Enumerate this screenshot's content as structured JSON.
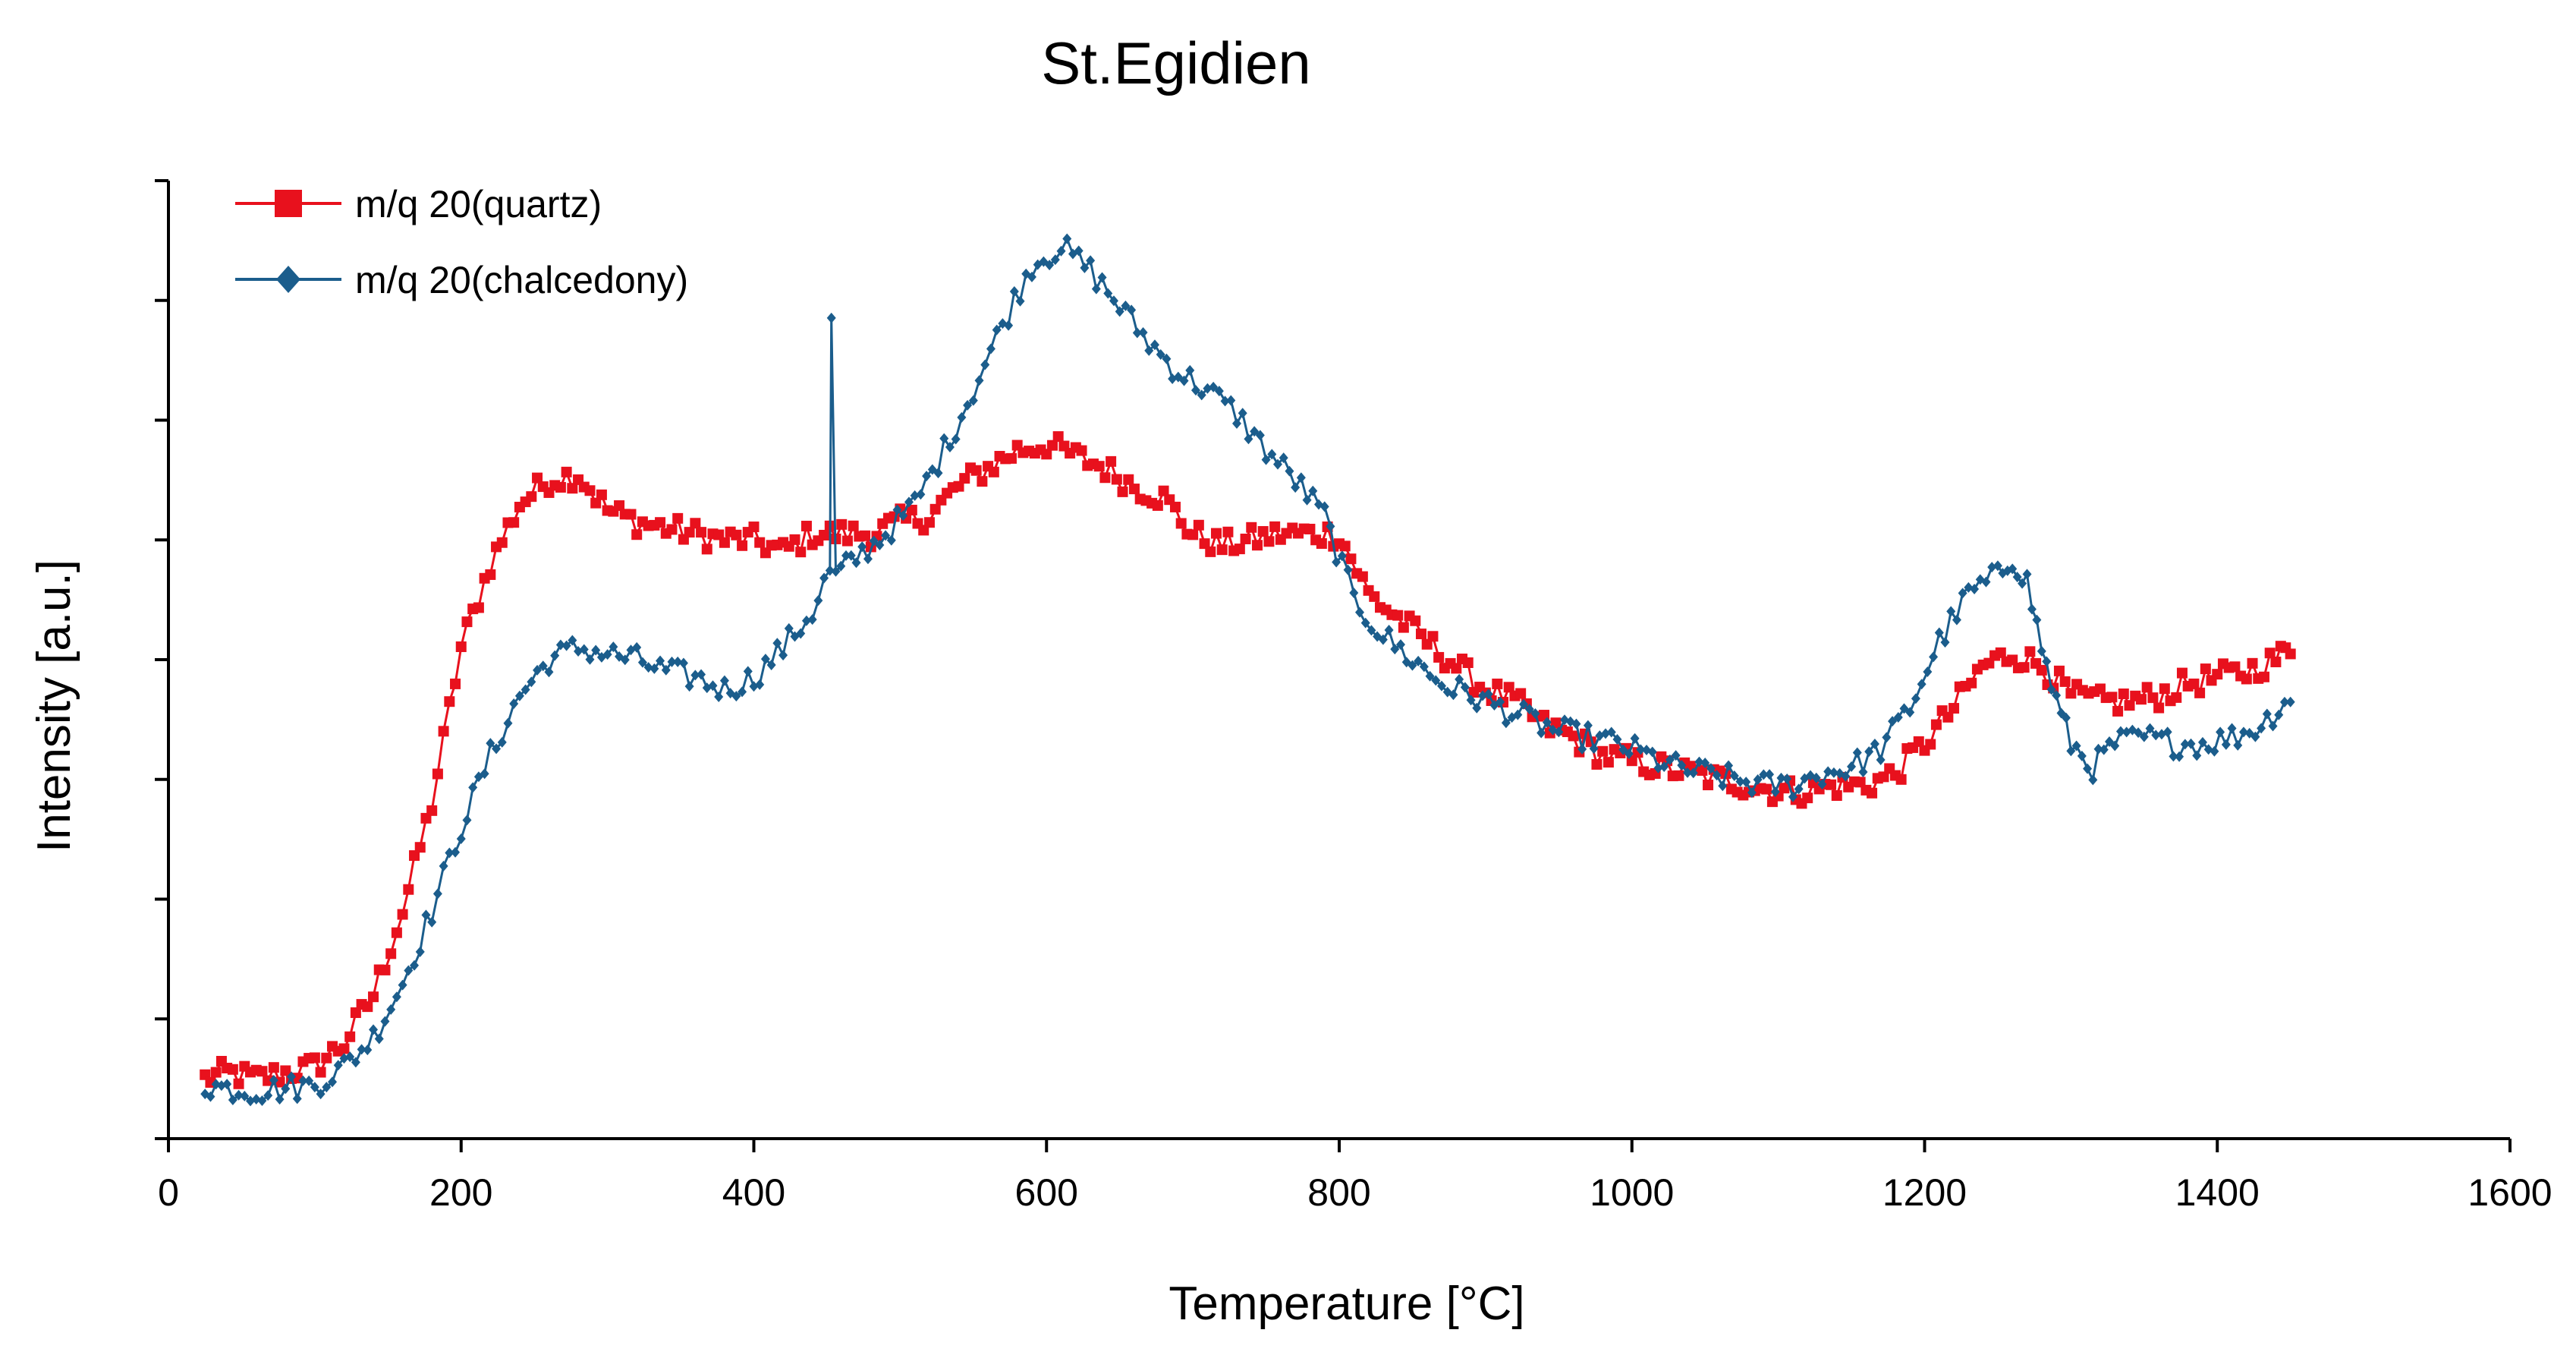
{
  "chart_data": {
    "type": "line",
    "title": "St.Egidien",
    "xlabel": "Temperature [°C]",
    "ylabel": "Intensity [a.u.]",
    "xlim": [
      0,
      1600
    ],
    "ylim": [
      0,
      8
    ],
    "x_ticks": [
      0,
      200,
      400,
      600,
      800,
      1000,
      1200,
      1400,
      1600
    ],
    "x_tick_labels": [
      "0",
      "200",
      "400",
      "600",
      "800",
      "1000",
      "1200",
      "1400",
      "1600"
    ],
    "y_ticks": [
      0,
      1,
      2,
      3,
      4,
      5,
      6,
      7,
      8
    ],
    "y_tick_labels_shown": false,
    "grid": false,
    "legend_position": "top-left",
    "series": [
      {
        "name": "m/q 20(quartz)",
        "color": "#e8111d",
        "marker": "square",
        "points": [
          [
            25,
            0.5
          ],
          [
            40,
            0.55
          ],
          [
            60,
            0.5
          ],
          [
            80,
            0.55
          ],
          [
            100,
            0.6
          ],
          [
            120,
            0.8
          ],
          [
            140,
            1.2
          ],
          [
            160,
            1.9
          ],
          [
            180,
            2.8
          ],
          [
            200,
            4.1
          ],
          [
            220,
            4.8
          ],
          [
            240,
            5.3
          ],
          [
            260,
            5.5
          ],
          [
            280,
            5.55
          ],
          [
            300,
            5.25
          ],
          [
            320,
            5.15
          ],
          [
            340,
            5.1
          ],
          [
            360,
            5.05
          ],
          [
            380,
            5.0
          ],
          [
            400,
            5.0
          ],
          [
            420,
            4.9
          ],
          [
            440,
            5.05
          ],
          [
            460,
            5.05
          ],
          [
            480,
            5.05
          ],
          [
            500,
            5.15
          ],
          [
            520,
            5.2
          ],
          [
            540,
            5.45
          ],
          [
            560,
            5.6
          ],
          [
            580,
            5.75
          ],
          [
            600,
            5.8
          ],
          [
            620,
            5.7
          ],
          [
            640,
            5.6
          ],
          [
            660,
            5.45
          ],
          [
            680,
            5.35
          ],
          [
            700,
            5.05
          ],
          [
            720,
            4.95
          ],
          [
            740,
            5.0
          ],
          [
            760,
            5.05
          ],
          [
            780,
            5.05
          ],
          [
            800,
            5.05
          ],
          [
            820,
            4.55
          ],
          [
            840,
            4.35
          ],
          [
            860,
            4.15
          ],
          [
            880,
            3.95
          ],
          [
            900,
            3.75
          ],
          [
            920,
            3.65
          ],
          [
            940,
            3.45
          ],
          [
            960,
            3.35
          ],
          [
            980,
            3.2
          ],
          [
            1000,
            3.15
          ],
          [
            1020,
            3.1
          ],
          [
            1040,
            3.05
          ],
          [
            1060,
            3.0
          ],
          [
            1080,
            2.95
          ],
          [
            1100,
            2.9
          ],
          [
            1120,
            2.9
          ],
          [
            1140,
            2.95
          ],
          [
            1160,
            2.95
          ],
          [
            1180,
            3.05
          ],
          [
            1200,
            3.3
          ],
          [
            1220,
            3.6
          ],
          [
            1240,
            3.95
          ],
          [
            1260,
            4.05
          ],
          [
            1280,
            3.95
          ],
          [
            1300,
            3.7
          ],
          [
            1320,
            3.65
          ],
          [
            1340,
            3.65
          ],
          [
            1360,
            3.7
          ],
          [
            1380,
            3.8
          ],
          [
            1400,
            3.85
          ],
          [
            1420,
            3.9
          ],
          [
            1440,
            4.0
          ],
          [
            1450,
            4.1
          ]
        ]
      },
      {
        "name": "m/q 20(chalcedony)",
        "color": "#1b5d8c",
        "marker": "diamond",
        "points": [
          [
            25,
            0.45
          ],
          [
            40,
            0.42
          ],
          [
            60,
            0.4
          ],
          [
            80,
            0.42
          ],
          [
            100,
            0.45
          ],
          [
            120,
            0.6
          ],
          [
            140,
            0.85
          ],
          [
            160,
            1.3
          ],
          [
            180,
            1.9
          ],
          [
            200,
            2.6
          ],
          [
            220,
            3.2
          ],
          [
            240,
            3.7
          ],
          [
            260,
            4.0
          ],
          [
            280,
            4.1
          ],
          [
            300,
            4.05
          ],
          [
            320,
            4.0
          ],
          [
            340,
            3.9
          ],
          [
            360,
            3.85
          ],
          [
            380,
            3.75
          ],
          [
            400,
            3.85
          ],
          [
            420,
            4.1
          ],
          [
            440,
            4.4
          ],
          [
            452,
            4.75
          ],
          [
            453,
            6.8
          ],
          [
            456,
            4.7
          ],
          [
            470,
            4.85
          ],
          [
            490,
            5.05
          ],
          [
            510,
            5.3
          ],
          [
            530,
            5.75
          ],
          [
            550,
            6.25
          ],
          [
            570,
            6.8
          ],
          [
            590,
            7.3
          ],
          [
            610,
            7.45
          ],
          [
            630,
            7.25
          ],
          [
            650,
            6.95
          ],
          [
            670,
            6.65
          ],
          [
            690,
            6.4
          ],
          [
            710,
            6.25
          ],
          [
            730,
            6.05
          ],
          [
            750,
            5.75
          ],
          [
            770,
            5.5
          ],
          [
            790,
            5.2
          ],
          [
            810,
            4.5
          ],
          [
            830,
            4.2
          ],
          [
            850,
            4.0
          ],
          [
            870,
            3.8
          ],
          [
            890,
            3.7
          ],
          [
            910,
            3.6
          ],
          [
            930,
            3.5
          ],
          [
            950,
            3.4
          ],
          [
            970,
            3.35
          ],
          [
            990,
            3.3
          ],
          [
            1010,
            3.2
          ],
          [
            1030,
            3.1
          ],
          [
            1050,
            3.05
          ],
          [
            1070,
            3.0
          ],
          [
            1090,
            2.95
          ],
          [
            1110,
            2.95
          ],
          [
            1130,
            3.05
          ],
          [
            1150,
            3.1
          ],
          [
            1170,
            3.25
          ],
          [
            1190,
            3.6
          ],
          [
            1210,
            4.15
          ],
          [
            1230,
            4.55
          ],
          [
            1250,
            4.7
          ],
          [
            1260,
            4.85
          ],
          [
            1270,
            4.65
          ],
          [
            1280,
            4.1
          ],
          [
            1290,
            3.65
          ],
          [
            1300,
            3.3
          ],
          [
            1315,
            3.1
          ],
          [
            1330,
            3.3
          ],
          [
            1350,
            3.35
          ],
          [
            1370,
            3.3
          ],
          [
            1390,
            3.3
          ],
          [
            1410,
            3.35
          ],
          [
            1430,
            3.45
          ],
          [
            1450,
            3.7
          ]
        ]
      }
    ]
  }
}
